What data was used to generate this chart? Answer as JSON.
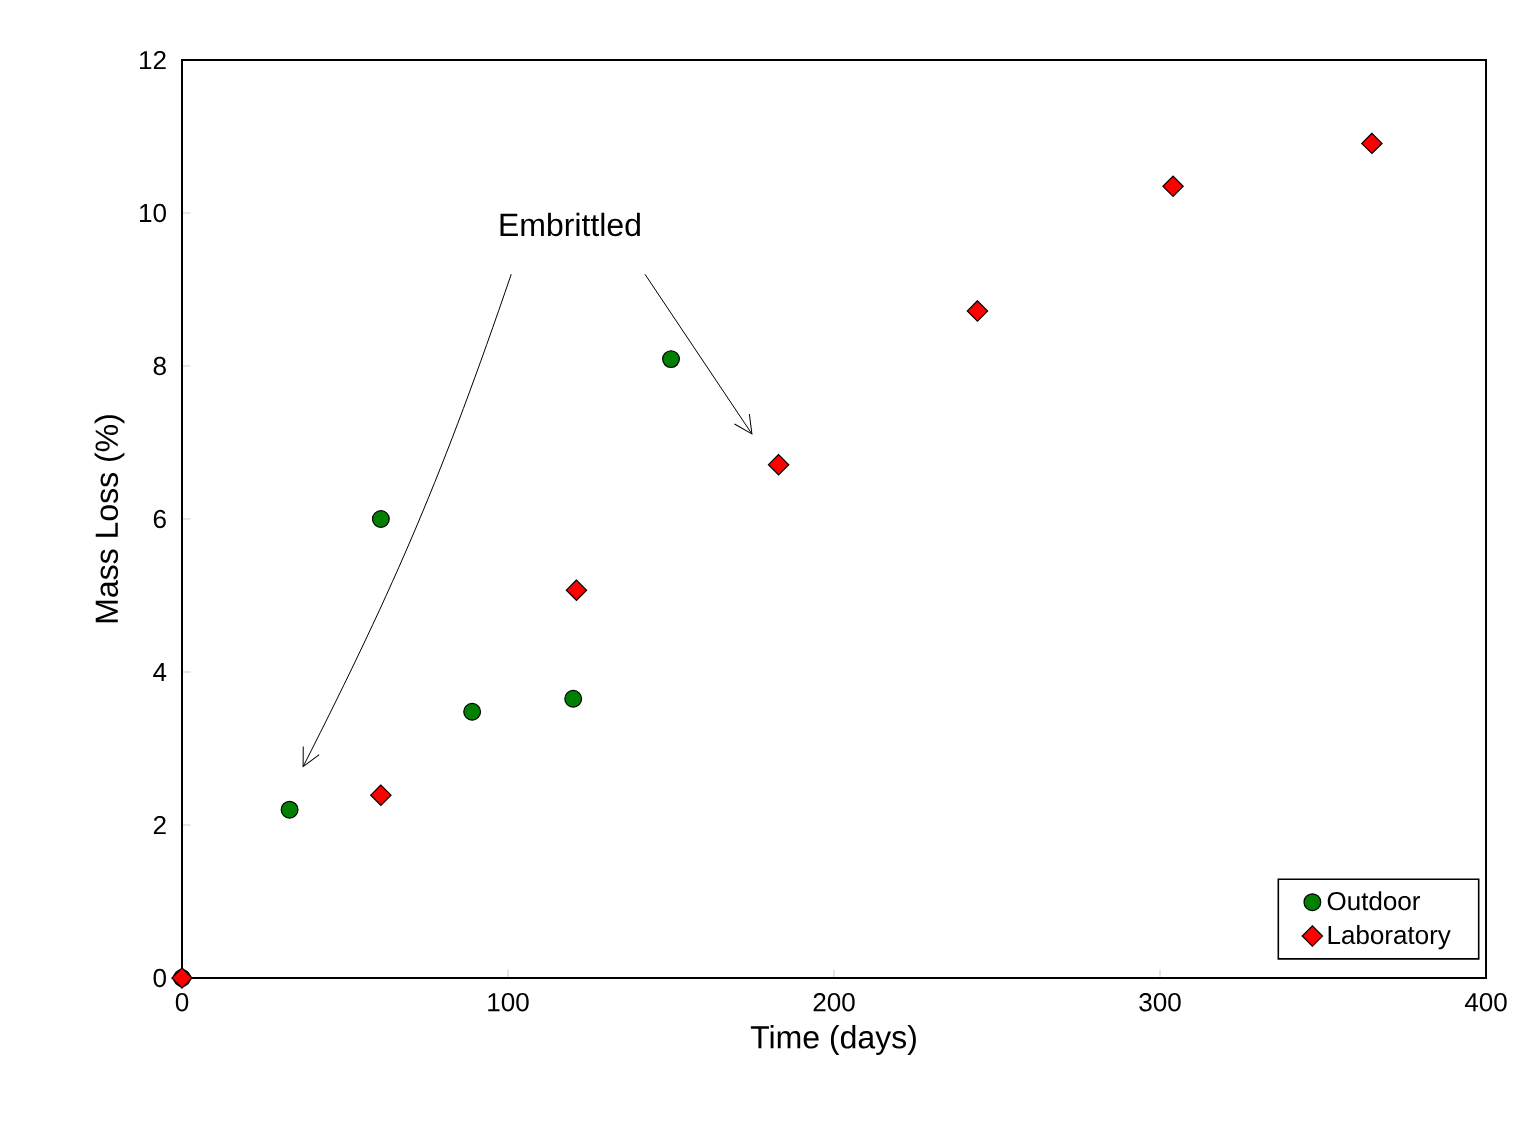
{
  "chart_data": {
    "type": "scatter",
    "xlabel": "Time (days)",
    "ylabel": "Mass Loss (%)",
    "xlim": [
      0,
      400
    ],
    "xticks": [
      0,
      100,
      200,
      300,
      400
    ],
    "ylim": [
      0,
      12
    ],
    "yticks": [
      0,
      2,
      4,
      6,
      8,
      10,
      12
    ],
    "grid": false,
    "legend": "bottom right",
    "annotations": [
      "Embrittled"
    ],
    "series": [
      {
        "name": "Outdoor",
        "color": "#008000",
        "marker": "circle",
        "x": [
          0,
          33,
          61,
          89,
          120,
          150
        ],
        "values": [
          0,
          2.2,
          6.0,
          3.48,
          3.65,
          8.09
        ]
      },
      {
        "name": "Laboratory",
        "color": "#ff0000",
        "marker": "diamond",
        "x": [
          0,
          61,
          121,
          183,
          244,
          304,
          365
        ],
        "values": [
          0,
          2.39,
          5.07,
          6.71,
          8.72,
          10.35,
          10.91
        ]
      }
    ]
  }
}
